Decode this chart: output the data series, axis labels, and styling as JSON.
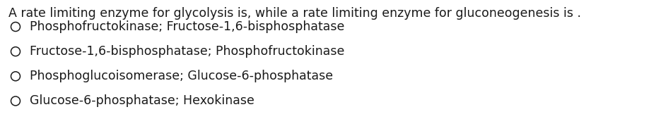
{
  "background_color": "#ffffff",
  "question_text": "A rate limiting enzyme for glycolysis is, while a rate limiting enzyme for gluconeogenesis is .",
  "options": [
    "Phosphofructokinase; Fructose-1,6-bisphosphatase",
    "Fructose-1,6-bisphosphatase; Phosphofructokinase",
    "Phosphoglucoisomerase; Glucose-6-phosphatase",
    "Glucose-6-phosphatase; Hexokinase"
  ],
  "question_fontsize": 12.5,
  "option_fontsize": 12.5,
  "text_color": "#1a1a1a",
  "fig_width": 9.29,
  "fig_height": 1.69,
  "dpi": 100
}
